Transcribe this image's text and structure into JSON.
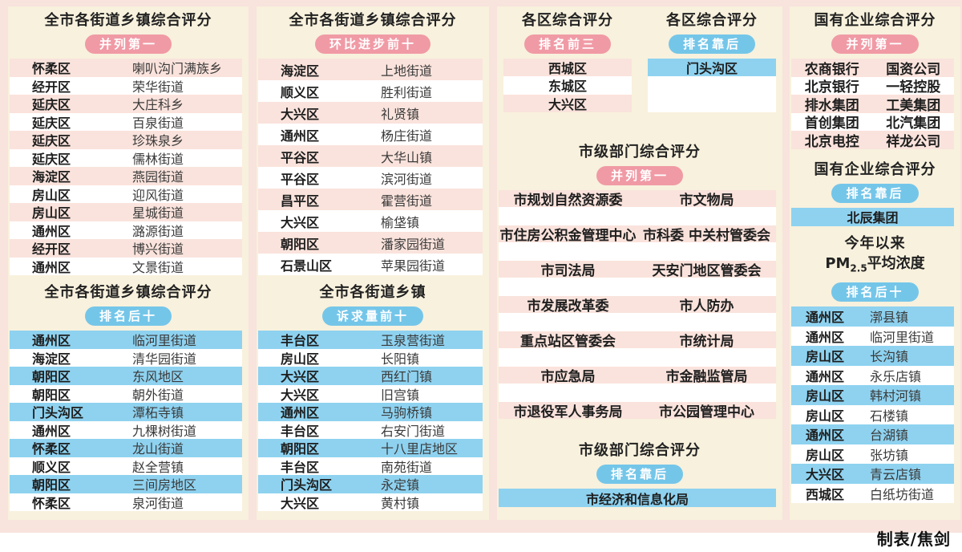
{
  "credit": "制表/焦剑",
  "colors": {
    "page_bg": "#f8e3dd",
    "panel_bg": "#f8f1dd",
    "pink_badge": "#f09aa5",
    "blue_badge": "#74c6e9",
    "pink_row": "#fae3dc",
    "blue_row": "#8ed2f0"
  },
  "chart_data": [
    {
      "type": "table",
      "title": "全市各街道乡镇综合评分",
      "badge": "并列第一",
      "rows": [
        {
          "d": "怀柔区",
          "n": "喇叭沟门满族乡",
          "bg": "pink"
        },
        {
          "d": "经开区",
          "n": "荣华街道",
          "bg": "none"
        },
        {
          "d": "延庆区",
          "n": "大庄科乡",
          "bg": "pink"
        },
        {
          "d": "延庆区",
          "n": "百泉街道",
          "bg": "none"
        },
        {
          "d": "延庆区",
          "n": "珍珠泉乡",
          "bg": "pink"
        },
        {
          "d": "延庆区",
          "n": "儒林街道",
          "bg": "none"
        },
        {
          "d": "海淀区",
          "n": "燕园街道",
          "bg": "pink"
        },
        {
          "d": "房山区",
          "n": "迎风街道",
          "bg": "none"
        },
        {
          "d": "房山区",
          "n": "星城街道",
          "bg": "pink"
        },
        {
          "d": "通州区",
          "n": "潞源街道",
          "bg": "none"
        },
        {
          "d": "经开区",
          "n": "博兴街道",
          "bg": "pink"
        },
        {
          "d": "通州区",
          "n": "文景街道",
          "bg": "none"
        }
      ]
    },
    {
      "type": "table",
      "title": "全市各街道乡镇综合评分",
      "badge": "排名后十",
      "rows": [
        {
          "d": "通州区",
          "n": "临河里街道",
          "bg": "blue"
        },
        {
          "d": "海淀区",
          "n": "清华园街道",
          "bg": "none"
        },
        {
          "d": "朝阳区",
          "n": "东风地区",
          "bg": "blue"
        },
        {
          "d": "朝阳区",
          "n": "朝外街道",
          "bg": "none"
        },
        {
          "d": "门头沟区",
          "n": "潭柘寺镇",
          "bg": "blue"
        },
        {
          "d": "通州区",
          "n": "九棵树街道",
          "bg": "none"
        },
        {
          "d": "怀柔区",
          "n": "龙山街道",
          "bg": "blue"
        },
        {
          "d": "顺义区",
          "n": "赵全营镇",
          "bg": "none"
        },
        {
          "d": "朝阳区",
          "n": "三间房地区",
          "bg": "blue"
        },
        {
          "d": "怀柔区",
          "n": "泉河街道",
          "bg": "none"
        }
      ]
    },
    {
      "type": "table",
      "title": "全市各街道乡镇综合评分",
      "badge": "环比进步前十",
      "rows": [
        {
          "d": "海淀区",
          "n": "上地街道",
          "bg": "pink"
        },
        {
          "d": "顺义区",
          "n": "胜利街道",
          "bg": "none"
        },
        {
          "d": "大兴区",
          "n": "礼贤镇",
          "bg": "pink"
        },
        {
          "d": "通州区",
          "n": "杨庄街道",
          "bg": "none"
        },
        {
          "d": "平谷区",
          "n": "大华山镇",
          "bg": "pink"
        },
        {
          "d": "平谷区",
          "n": "滨河街道",
          "bg": "none"
        },
        {
          "d": "昌平区",
          "n": "霍营街道",
          "bg": "pink"
        },
        {
          "d": "大兴区",
          "n": "榆垡镇",
          "bg": "none"
        },
        {
          "d": "朝阳区",
          "n": "潘家园街道",
          "bg": "pink"
        },
        {
          "d": "石景山区",
          "n": "苹果园街道",
          "bg": "none"
        }
      ]
    },
    {
      "type": "table",
      "title": "全市各街道乡镇",
      "badge": "诉求量前十",
      "rows": [
        {
          "d": "丰台区",
          "n": "玉泉营街道",
          "bg": "blue"
        },
        {
          "d": "房山区",
          "n": "长阳镇",
          "bg": "none"
        },
        {
          "d": "大兴区",
          "n": "西红门镇",
          "bg": "blue"
        },
        {
          "d": "大兴区",
          "n": "旧宫镇",
          "bg": "none"
        },
        {
          "d": "通州区",
          "n": "马驹桥镇",
          "bg": "blue"
        },
        {
          "d": "丰台区",
          "n": "右安门街道",
          "bg": "none"
        },
        {
          "d": "朝阳区",
          "n": "十八里店地区",
          "bg": "blue"
        },
        {
          "d": "丰台区",
          "n": "南苑街道",
          "bg": "none"
        },
        {
          "d": "门头沟区",
          "n": "永定镇",
          "bg": "blue"
        },
        {
          "d": "大兴区",
          "n": "黄村镇",
          "bg": "none"
        }
      ]
    },
    {
      "type": "table",
      "title": "各区综合评分",
      "badge": "排名前三",
      "rows": [
        {
          "v": "西城区",
          "bg": "pink"
        },
        {
          "v": "东城区",
          "bg": "none"
        },
        {
          "v": "大兴区",
          "bg": "pink"
        }
      ]
    },
    {
      "type": "table",
      "title": "各区综合评分",
      "badge": "排名靠后",
      "rows": [
        {
          "v": "门头沟区",
          "bg": "blue"
        }
      ]
    },
    {
      "type": "table",
      "title": "市级部门综合评分",
      "badge": "并列第一",
      "rows": [
        {
          "l": "市规划自然资源委",
          "r": "市文物局",
          "bg": "pink"
        },
        {
          "l": "市住房公积金管理中心",
          "r": "市科委 中关村管委会",
          "bg": "pink"
        },
        {
          "l": "市司法局",
          "r": "天安门地区管委会",
          "bg": "pink"
        },
        {
          "l": "市发展改革委",
          "r": "市人防办",
          "bg": "pink"
        },
        {
          "l": "重点站区管委会",
          "r": "市统计局",
          "bg": "pink"
        },
        {
          "l": "市应急局",
          "r": "市金融监管局",
          "bg": "pink"
        },
        {
          "l": "市退役军人事务局",
          "r": "市公园管理中心",
          "bg": "pink"
        }
      ]
    },
    {
      "type": "table",
      "title": "市级部门综合评分",
      "badge": "排名靠后",
      "rows": [
        {
          "v": "市经济和信息化局",
          "bg": "blue"
        }
      ]
    },
    {
      "type": "table",
      "title": "国有企业综合评分",
      "badge": "并列第一",
      "rows": [
        {
          "l": "农商银行",
          "r": "国资公司",
          "bg": "pink"
        },
        {
          "l": "北京银行",
          "r": "一轻控股",
          "bg": "none"
        },
        {
          "l": "排水集团",
          "r": "工美集团",
          "bg": "pink"
        },
        {
          "l": "首创集团",
          "r": "北汽集团",
          "bg": "none"
        },
        {
          "l": "北京电控",
          "r": "祥龙公司",
          "bg": "pink"
        }
      ]
    },
    {
      "type": "table",
      "title": "国有企业综合评分",
      "badge": "排名靠后",
      "rows": [
        {
          "v": "北辰集团",
          "bg": "blue"
        }
      ]
    },
    {
      "type": "table",
      "title_line1": "今年以来",
      "title_pm": {
        "prefix": "PM",
        "sub": "2.5",
        "suffix": "平均浓度"
      },
      "badge": "排名后十",
      "rows": [
        {
          "d": "通州区",
          "n": "漷县镇",
          "bg": "blue"
        },
        {
          "d": "通州区",
          "n": "临河里街道",
          "bg": "none"
        },
        {
          "d": "房山区",
          "n": "长沟镇",
          "bg": "blue"
        },
        {
          "d": "通州区",
          "n": "永乐店镇",
          "bg": "none"
        },
        {
          "d": "房山区",
          "n": "韩村河镇",
          "bg": "blue"
        },
        {
          "d": "房山区",
          "n": "石楼镇",
          "bg": "none"
        },
        {
          "d": "通州区",
          "n": "台湖镇",
          "bg": "blue"
        },
        {
          "d": "房山区",
          "n": "张坊镇",
          "bg": "none"
        },
        {
          "d": "大兴区",
          "n": "青云店镇",
          "bg": "blue"
        },
        {
          "d": "西城区",
          "n": "白纸坊街道",
          "bg": "none"
        }
      ]
    }
  ]
}
